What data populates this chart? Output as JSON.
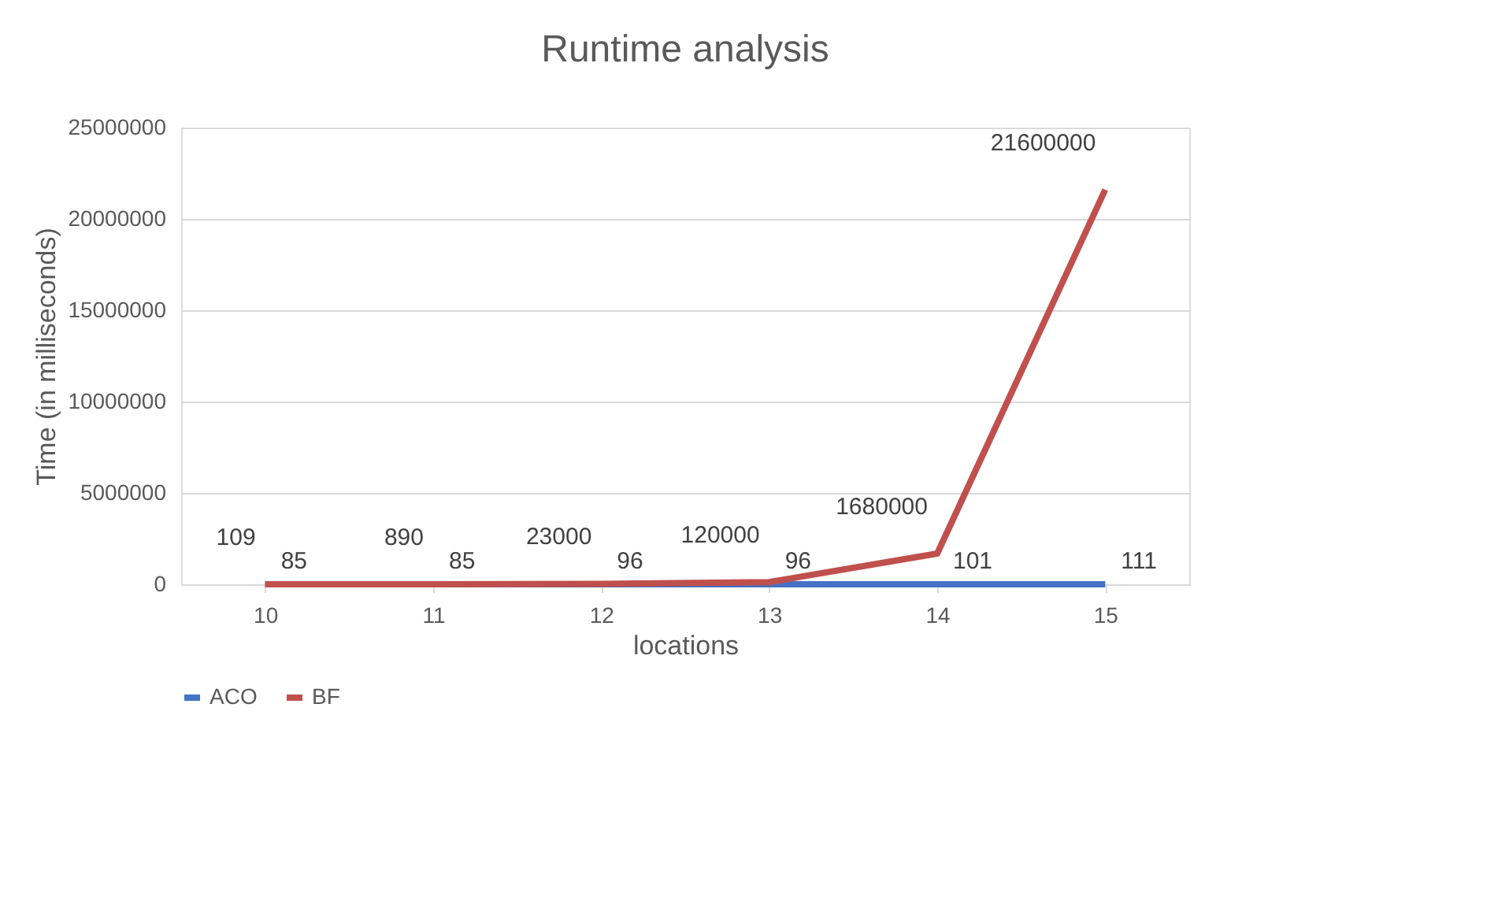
{
  "chart_data": {
    "type": "line",
    "title": "Runtime analysis",
    "xlabel": "locations",
    "ylabel": "Time (in milliseconds)",
    "categories": [
      "10",
      "11",
      "12",
      "13",
      "14",
      "15"
    ],
    "series": [
      {
        "name": "ACO",
        "color": "#4472c4",
        "values": [
          85,
          85,
          96,
          96,
          101,
          111
        ]
      },
      {
        "name": "BF",
        "color": "#c0504d",
        "values": [
          109,
          890,
          23000,
          120000,
          1680000,
          21600000
        ]
      }
    ],
    "ylim": [
      0,
      25000000
    ],
    "yticks": [
      0,
      5000000,
      10000000,
      15000000,
      20000000,
      25000000
    ],
    "grid": "y",
    "legend": "bottom",
    "marker": "none",
    "line_style": "solid",
    "data_labels": true
  }
}
